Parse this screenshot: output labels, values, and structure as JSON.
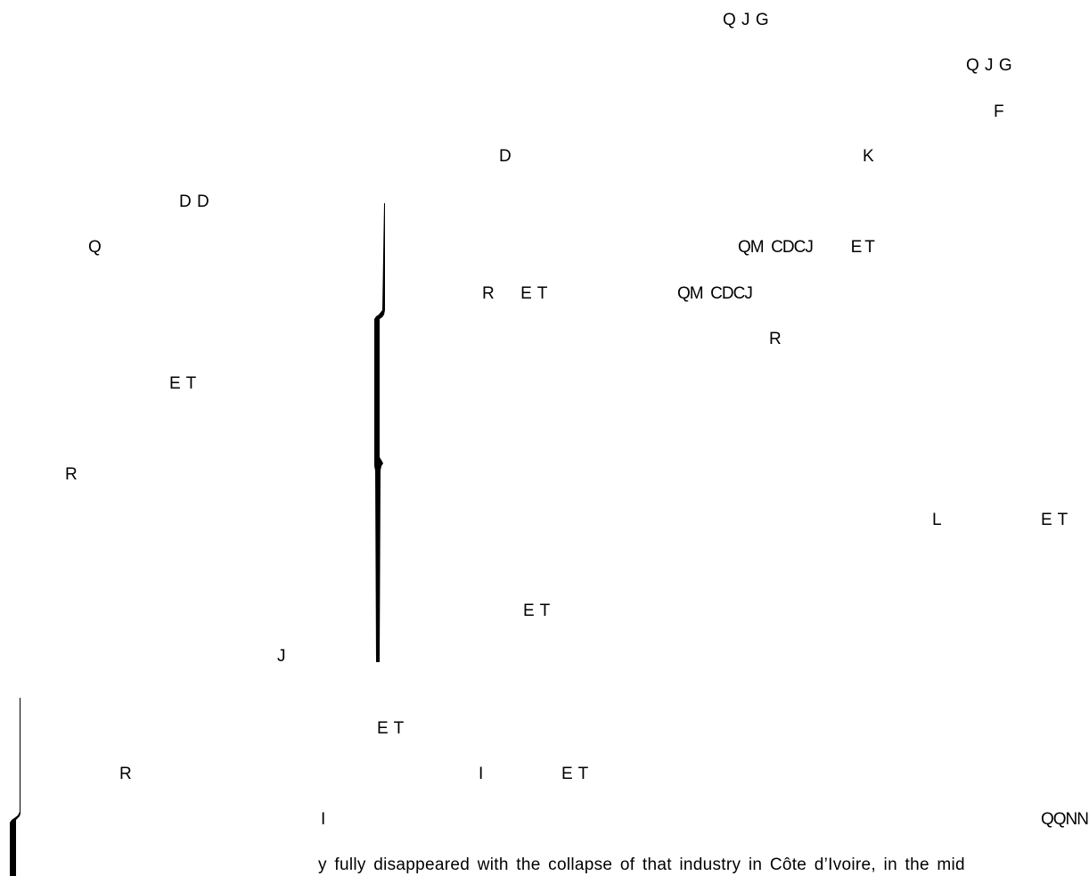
{
  "fragments": {
    "qjg_top": "Q J G",
    "qjg_right": "Q J G",
    "f_right": "F",
    "d_mid": "D",
    "k_mid": "K",
    "dd_left": "D D",
    "q_left": "Q",
    "qm_cdcj_et": "QM  CDCJ          E T",
    "r_et": "R     E T",
    "qm_cdcj": "QM  CDCJ",
    "r_mid": "R",
    "et_left": "E T",
    "r_left": "R",
    "l_right": "L",
    "et_right": "E T",
    "et_center": "E T",
    "j_left": "J",
    "et_lower": "E T",
    "r_lower": "R",
    "i_lower": "I",
    "et_lower_right": "E T",
    "i_bottom": "I",
    "qqnn": "QQNN"
  },
  "footer_text": "y fully disappeared with the collapse of that industry in Côte d’Ivoire, in the mid"
}
